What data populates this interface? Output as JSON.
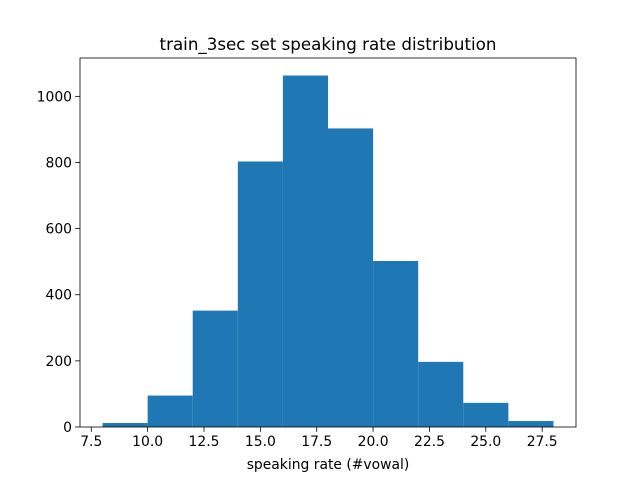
{
  "chart_data": {
    "type": "histogram",
    "title": "train_3sec set speaking rate distribution",
    "x_label": "speaking rate (#vowal)",
    "bins": [
      8,
      10,
      12,
      14,
      16,
      18,
      20,
      22,
      24,
      26,
      28
    ],
    "values": [
      12,
      95,
      352,
      803,
      1063,
      903,
      502,
      197,
      73,
      18
    ],
    "color": "#1f77b4",
    "xlim": [
      7,
      29
    ],
    "xticks": [
      7.5,
      {
        "value": 10,
        "label": "10.0"
      },
      12.5,
      {
        "value": 15,
        "label": "15.0"
      },
      17.5,
      {
        "value": 20,
        "label": "20.0"
      },
      22.5,
      {
        "value": 25,
        "label": "25.0"
      },
      27.5
    ],
    "ylim": [
      0,
      1116
    ],
    "yticks": [
      0,
      200,
      400,
      600,
      800,
      1000
    ]
  }
}
